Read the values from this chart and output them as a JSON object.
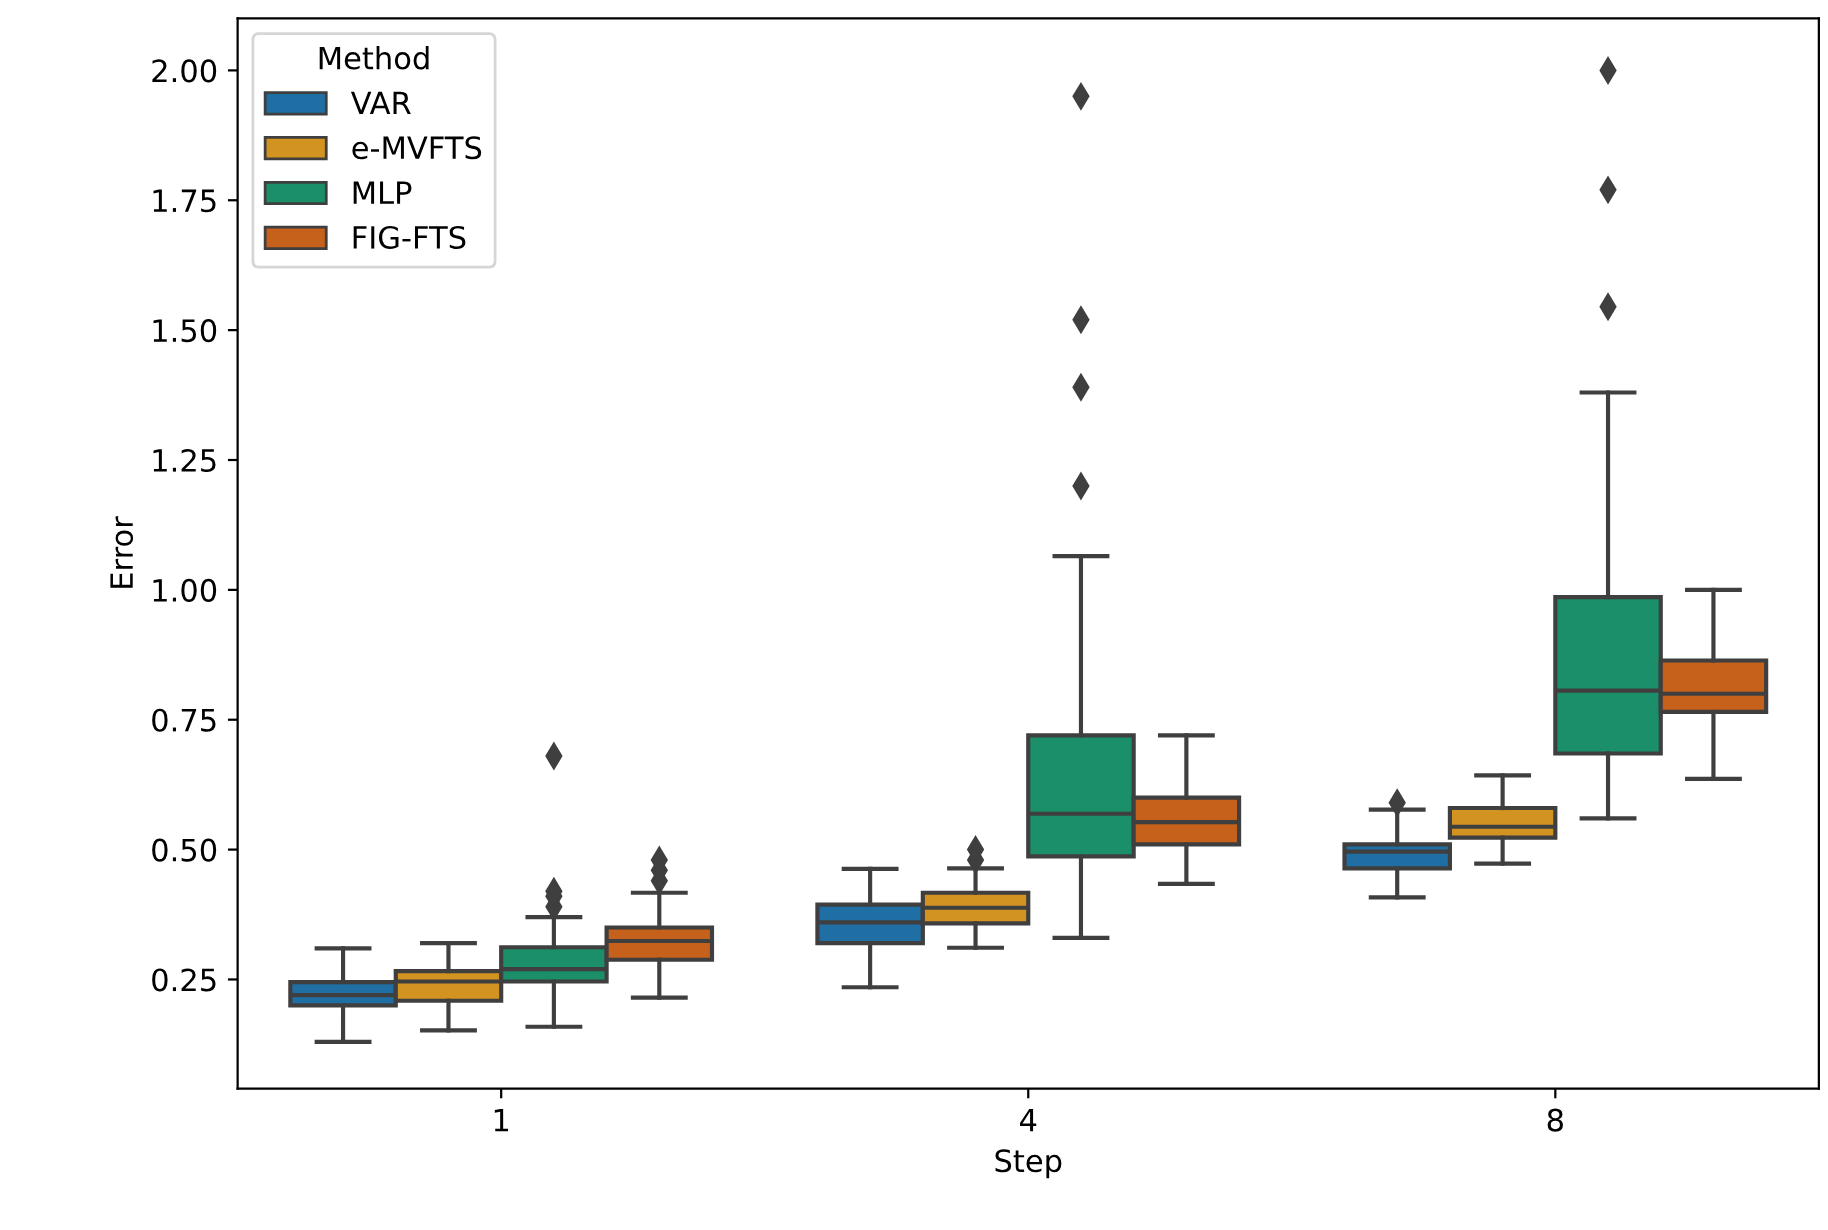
{
  "chart_data": {
    "type": "box",
    "xlabel": "Step",
    "ylabel": "Error",
    "legend_title": "Method",
    "legend": "top left",
    "grid": false,
    "marker": "diamond",
    "categories": [
      "1",
      "4",
      "8"
    ],
    "ylim": [
      0.04,
      2.1
    ],
    "yticks": [
      {
        "value": 0.25,
        "label": "0.25"
      },
      {
        "value": 0.5,
        "label": "0.50"
      },
      {
        "value": 0.75,
        "label": "0.75"
      },
      {
        "value": 1.0,
        "label": "1.00"
      },
      {
        "value": 1.25,
        "label": "1.25"
      },
      {
        "value": 1.5,
        "label": "1.50"
      },
      {
        "value": 1.75,
        "label": "1.75"
      },
      {
        "value": 2.0,
        "label": "2.00"
      }
    ],
    "series": [
      {
        "name": "VAR",
        "color": "#1f6fa5",
        "boxes": [
          {
            "low": 0.13,
            "q1": 0.2,
            "median": 0.22,
            "q3": 0.245,
            "high": 0.31
          },
          {
            "low": 0.235,
            "q1": 0.32,
            "median": 0.36,
            "q3": 0.394,
            "high": 0.463
          },
          {
            "low": 0.408,
            "q1": 0.464,
            "median": 0.496,
            "q3": 0.51,
            "high": 0.577,
            "outliers": [
              0.59
            ]
          }
        ]
      },
      {
        "name": "e-MVFTS",
        "color": "#d39320",
        "boxes": [
          {
            "low": 0.152,
            "q1": 0.209,
            "median": 0.246,
            "q3": 0.266,
            "high": 0.32
          },
          {
            "low": 0.311,
            "q1": 0.358,
            "median": 0.388,
            "q3": 0.417,
            "high": 0.464,
            "outliers": [
              0.48,
              0.5
            ]
          },
          {
            "low": 0.473,
            "q1": 0.523,
            "median": 0.544,
            "q3": 0.58,
            "high": 0.643
          }
        ]
      },
      {
        "name": "MLP",
        "color": "#1a8f6a",
        "boxes": [
          {
            "low": 0.159,
            "q1": 0.246,
            "median": 0.27,
            "q3": 0.312,
            "high": 0.37,
            "outliers": [
              0.39,
              0.41,
              0.42,
              0.68
            ]
          },
          {
            "low": 0.33,
            "q1": 0.487,
            "median": 0.569,
            "q3": 0.72,
            "high": 1.065,
            "outliers": [
              1.2,
              1.39,
              1.52,
              1.95
            ]
          },
          {
            "low": 0.56,
            "q1": 0.685,
            "median": 0.806,
            "q3": 0.986,
            "high": 1.38,
            "outliers": [
              1.545,
              1.77,
              2.0
            ]
          }
        ]
      },
      {
        "name": "FIG-FTS",
        "color": "#c5611b",
        "boxes": [
          {
            "low": 0.215,
            "q1": 0.288,
            "median": 0.324,
            "q3": 0.35,
            "high": 0.417,
            "outliers": [
              0.44,
              0.46,
              0.48
            ]
          },
          {
            "low": 0.434,
            "q1": 0.51,
            "median": 0.553,
            "q3": 0.6,
            "high": 0.72
          },
          {
            "low": 0.636,
            "q1": 0.765,
            "median": 0.8,
            "q3": 0.864,
            "high": 1.0
          }
        ]
      }
    ]
  }
}
